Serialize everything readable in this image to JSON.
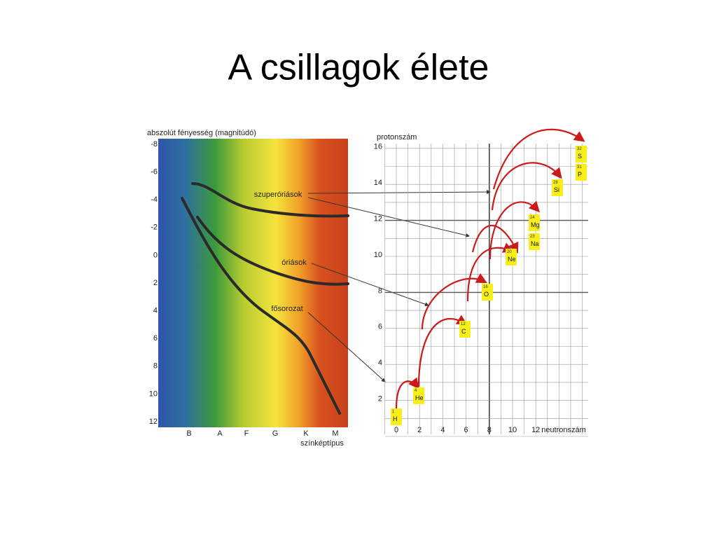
{
  "title": "A csillagok élete",
  "hr_diagram": {
    "y_axis_title": "abszolút fényesség (magnitúdó)",
    "y_labels": [
      "-8",
      "-6",
      "-4",
      "-2",
      "0",
      "2",
      "4",
      "6",
      "8",
      "10",
      "12"
    ],
    "x_labels": [
      "B",
      "A",
      "F",
      "G",
      "K",
      "M"
    ],
    "x_axis_title": "színképtípus",
    "annotations": [
      "szuperóriások",
      "óriások",
      "fősorozat"
    ]
  },
  "nucleus_chart": {
    "y_axis_title": "protonszám",
    "y_labels": [
      "2",
      "4",
      "6",
      "8",
      "10",
      "12",
      "14",
      "16"
    ],
    "x_labels": [
      "0",
      "2",
      "4",
      "6",
      "8",
      "10",
      "12"
    ],
    "x_axis_title": "neutronszám",
    "elements": [
      {
        "mass": "1",
        "symbol": "H"
      },
      {
        "mass": "4",
        "symbol": "He"
      },
      {
        "mass": "12",
        "symbol": "C"
      },
      {
        "mass": "16",
        "symbol": "O"
      },
      {
        "mass": "20",
        "symbol": "Ne"
      },
      {
        "mass": "24",
        "symbol": "Mg"
      },
      {
        "mass": "23",
        "symbol": "Na"
      },
      {
        "mass": "28",
        "symbol": "Si"
      },
      {
        "mass": "32",
        "symbol": "S"
      },
      {
        "mass": "31",
        "symbol": "P"
      }
    ]
  }
}
